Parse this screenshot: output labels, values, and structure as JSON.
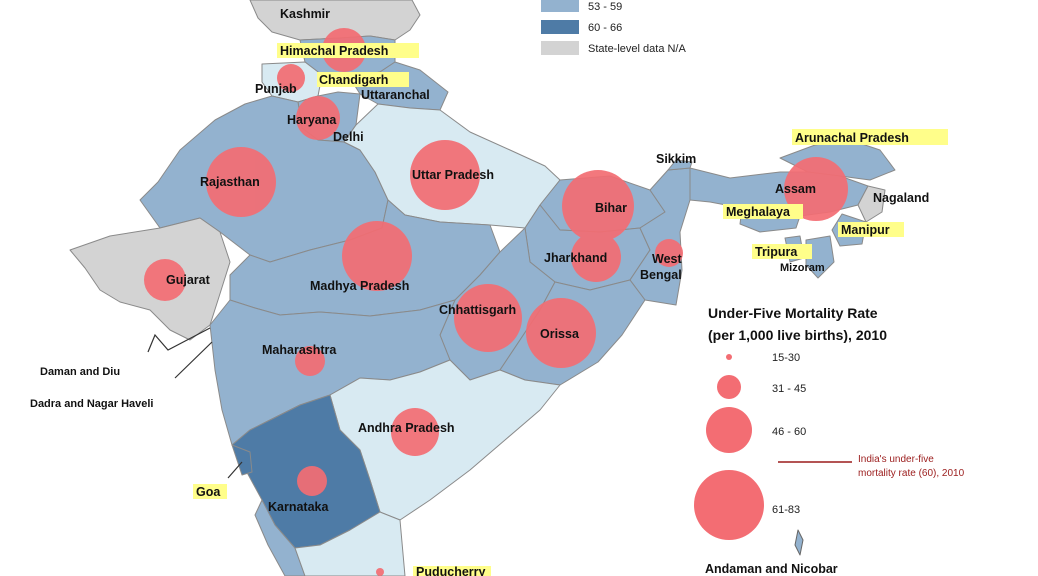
{
  "colors": {
    "dark_blue": "#4e7ba6",
    "mid_blue": "#93b2cf",
    "light_blue": "#d8eaf2",
    "grey": "#d3d3d3",
    "bubble": "#f36d73",
    "border": "#8a8a8a",
    "note_line": "#9b1c1c",
    "label_highlight": "#fffe8a"
  },
  "top_legend": {
    "items": [
      {
        "label": "53 - 59",
        "color": "#93b2cf"
      },
      {
        "label": "60 - 66",
        "color": "#4e7ba6"
      },
      {
        "label": "State-level data N/A",
        "color": "#d3d3d3"
      }
    ]
  },
  "size_legend": {
    "title_line1": "Under-Five Mortality Rate",
    "title_line2": "(per 1,000 live births), 2010",
    "items": [
      {
        "label": "15-30"
      },
      {
        "label": "31 - 45"
      },
      {
        "label": "46 - 60"
      },
      {
        "label": "61-83"
      }
    ],
    "note_line1": "India's under-five",
    "note_line2": "mortality rate (60), 2010"
  },
  "labels": {
    "jk": "Jammu and Kashmir",
    "jk_line2": "Kashmir",
    "himachal": "Himachal Pradesh",
    "punjab": "Punjab",
    "chandigarh": "Chandigarh",
    "uttaranchal": "Uttaranchal",
    "haryana": "Haryana",
    "delhi": "Delhi",
    "rajasthan": "Rajasthan",
    "uttar_pradesh": "Uttar Pradesh",
    "sikkim": "Sikkim",
    "arunachal": "Arunachal Pradesh",
    "assam": "Assam",
    "nagaland": "Nagaland",
    "meghalaya": "Meghalaya",
    "manipur": "Manipur",
    "tripura": "Tripura",
    "mizoram": "Mizoram",
    "bihar": "Bihar",
    "jharkhand": "Jharkhand",
    "west_bengal_1": "West",
    "west_bengal_2": "Bengal",
    "gujarat": "Gujarat",
    "madhya_pradesh": "Madhya Pradesh",
    "chhattisgarh": "Chhattisgarh",
    "orissa": "Orissa",
    "maharashtra": "Maharashtra",
    "daman_diu": "Daman and Diu",
    "dadra": "Dadra and Nagar Haveli",
    "andhra": "Andhra Pradesh",
    "goa": "Goa",
    "karnataka": "Karnataka",
    "puducherry": "Puducherry",
    "andaman": "Andaman and Nicobar"
  }
}
